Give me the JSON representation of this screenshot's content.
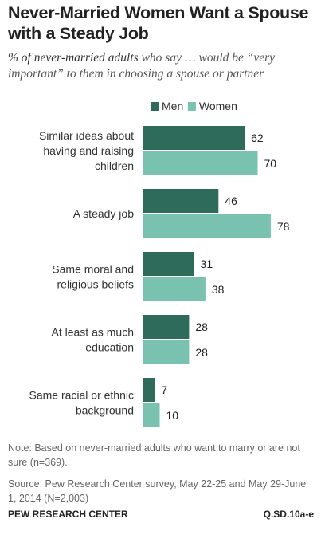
{
  "title": "Never-Married Women Want a Spouse with a Steady Job",
  "subtitle_lead": "% of never-married adults",
  "subtitle_rest": " who say … would be “very important” to them in choosing a spouse or partner",
  "note": "Note: Based on never-married adults who want to marry or are not sure (n=369).",
  "source": "Source: Pew Research Center survey, May 22-25 and May 29-June 1, 2014 (N=2,003)",
  "footer_left": "PEW RESEARCH CENTER",
  "footer_right": "Q.SD.10a-e",
  "colors": {
    "men": "#2e6b5a",
    "women": "#79c2af"
  },
  "chart_data": {
    "type": "bar",
    "orientation": "horizontal",
    "categories": [
      [
        "Similar ideas about",
        "having and raising",
        "children"
      ],
      [
        "A steady job"
      ],
      [
        "Same moral and",
        "religious beliefs"
      ],
      [
        "At least as much",
        "education"
      ],
      [
        "Same racial or ethnic",
        "background"
      ]
    ],
    "series": [
      {
        "name": "Men",
        "values": [
          62,
          46,
          31,
          28,
          7
        ]
      },
      {
        "name": "Women",
        "values": [
          70,
          78,
          38,
          28,
          10
        ]
      }
    ],
    "legend": "top-right",
    "grid": false
  }
}
